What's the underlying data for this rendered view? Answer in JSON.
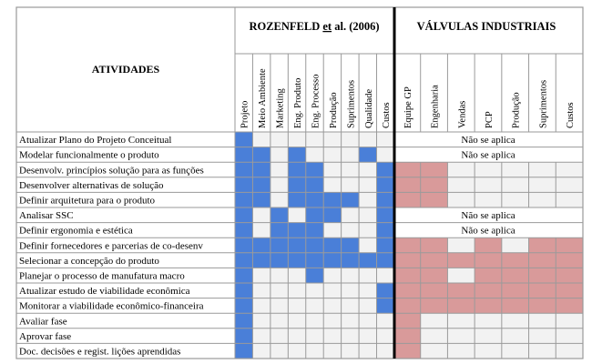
{
  "header": {
    "activities": "ATIVIDADES",
    "group1": {
      "pre": "ROZENFELD ",
      "underlined": "et",
      "post": " al. (2006)"
    },
    "group2": "VÁLVULAS INDUSTRIAIS"
  },
  "columns_group1": [
    "Projeto",
    "Meio Ambiente",
    "Marketing",
    "Eng. Produto",
    "Eng. Processo",
    "Produção",
    "Suprimentos",
    "Qualidade",
    "Custos"
  ],
  "columns_group2": [
    "Equipe GP",
    "Engenharia",
    "Vendas",
    "PCP",
    "Produção",
    "Suprimentos",
    "Custos"
  ],
  "colors": {
    "blue": "#4a7fd8",
    "pink": "#d99a9a",
    "empty": "#f2f2f2",
    "grid": "#9a9a9a",
    "divider": "#000000"
  },
  "not_applicable": "Não se aplica",
  "rows": [
    {
      "activity": "Atualizar Plano do Projeto Conceitual",
      "g1": [
        1,
        0,
        0,
        0,
        0,
        0,
        0,
        0,
        0
      ],
      "g2": "na"
    },
    {
      "activity": "Modelar funcionalmente o produto",
      "g1": [
        1,
        1,
        0,
        1,
        0,
        0,
        0,
        1,
        0
      ],
      "g2": "na"
    },
    {
      "activity": "Desenvolv. princípios solução para as funções",
      "g1": [
        1,
        1,
        0,
        1,
        1,
        0,
        0,
        0,
        1
      ],
      "g2": [
        1,
        1,
        0,
        0,
        0,
        0,
        0
      ]
    },
    {
      "activity": "Desenvolver alternativas de solução",
      "g1": [
        1,
        1,
        0,
        1,
        1,
        0,
        0,
        0,
        1
      ],
      "g2": [
        1,
        1,
        0,
        0,
        0,
        0,
        0
      ]
    },
    {
      "activity": "Definir arquitetura para o produto",
      "g1": [
        1,
        1,
        0,
        1,
        1,
        1,
        1,
        0,
        1
      ],
      "g2": [
        1,
        1,
        0,
        0,
        0,
        0,
        0
      ]
    },
    {
      "activity": "Analisar SSC",
      "g1": [
        1,
        0,
        1,
        0,
        1,
        1,
        0,
        0,
        1
      ],
      "g2": "na"
    },
    {
      "activity": "Definir ergonomia e estética",
      "g1": [
        1,
        0,
        1,
        1,
        1,
        0,
        0,
        0,
        1
      ],
      "g2": "na"
    },
    {
      "activity": "Definir fornecedores e parcerias de co-desenv",
      "g1": [
        1,
        1,
        1,
        1,
        1,
        1,
        1,
        0,
        1
      ],
      "g2": [
        1,
        1,
        0,
        1,
        0,
        1,
        1
      ]
    },
    {
      "activity": "Selecionar a concepção do produto",
      "g1": [
        1,
        1,
        1,
        1,
        1,
        1,
        1,
        1,
        1
      ],
      "g2": [
        1,
        1,
        1,
        1,
        1,
        1,
        1
      ]
    },
    {
      "activity": "Planejar o processo de manufatura macro",
      "g1": [
        1,
        0,
        0,
        0,
        1,
        0,
        0,
        0,
        0
      ],
      "g2": [
        1,
        1,
        0,
        1,
        1,
        1,
        1
      ]
    },
    {
      "activity": "Atualizar estudo de viabilidade econômica",
      "g1": [
        1,
        0,
        0,
        0,
        0,
        0,
        0,
        0,
        1
      ],
      "g2": [
        1,
        1,
        1,
        1,
        1,
        1,
        1
      ]
    },
    {
      "activity": "Monitorar a viabilidade econômico-financeira",
      "g1": [
        1,
        0,
        0,
        0,
        0,
        0,
        0,
        0,
        1
      ],
      "g2": [
        1,
        1,
        1,
        1,
        1,
        1,
        1
      ]
    },
    {
      "activity": "Avaliar fase",
      "g1": [
        1,
        0,
        0,
        0,
        0,
        0,
        0,
        0,
        0
      ],
      "g2": [
        1,
        0,
        0,
        0,
        0,
        0,
        0
      ]
    },
    {
      "activity": "Aprovar fase",
      "g1": [
        1,
        0,
        0,
        0,
        0,
        0,
        0,
        0,
        0
      ],
      "g2": [
        1,
        0,
        0,
        0,
        0,
        0,
        0
      ]
    },
    {
      "activity": "Doc. decisões e regist. lições aprendidas",
      "g1": [
        1,
        0,
        0,
        0,
        0,
        0,
        0,
        0,
        0
      ],
      "g2": [
        1,
        0,
        0,
        0,
        0,
        0,
        0
      ]
    }
  ]
}
